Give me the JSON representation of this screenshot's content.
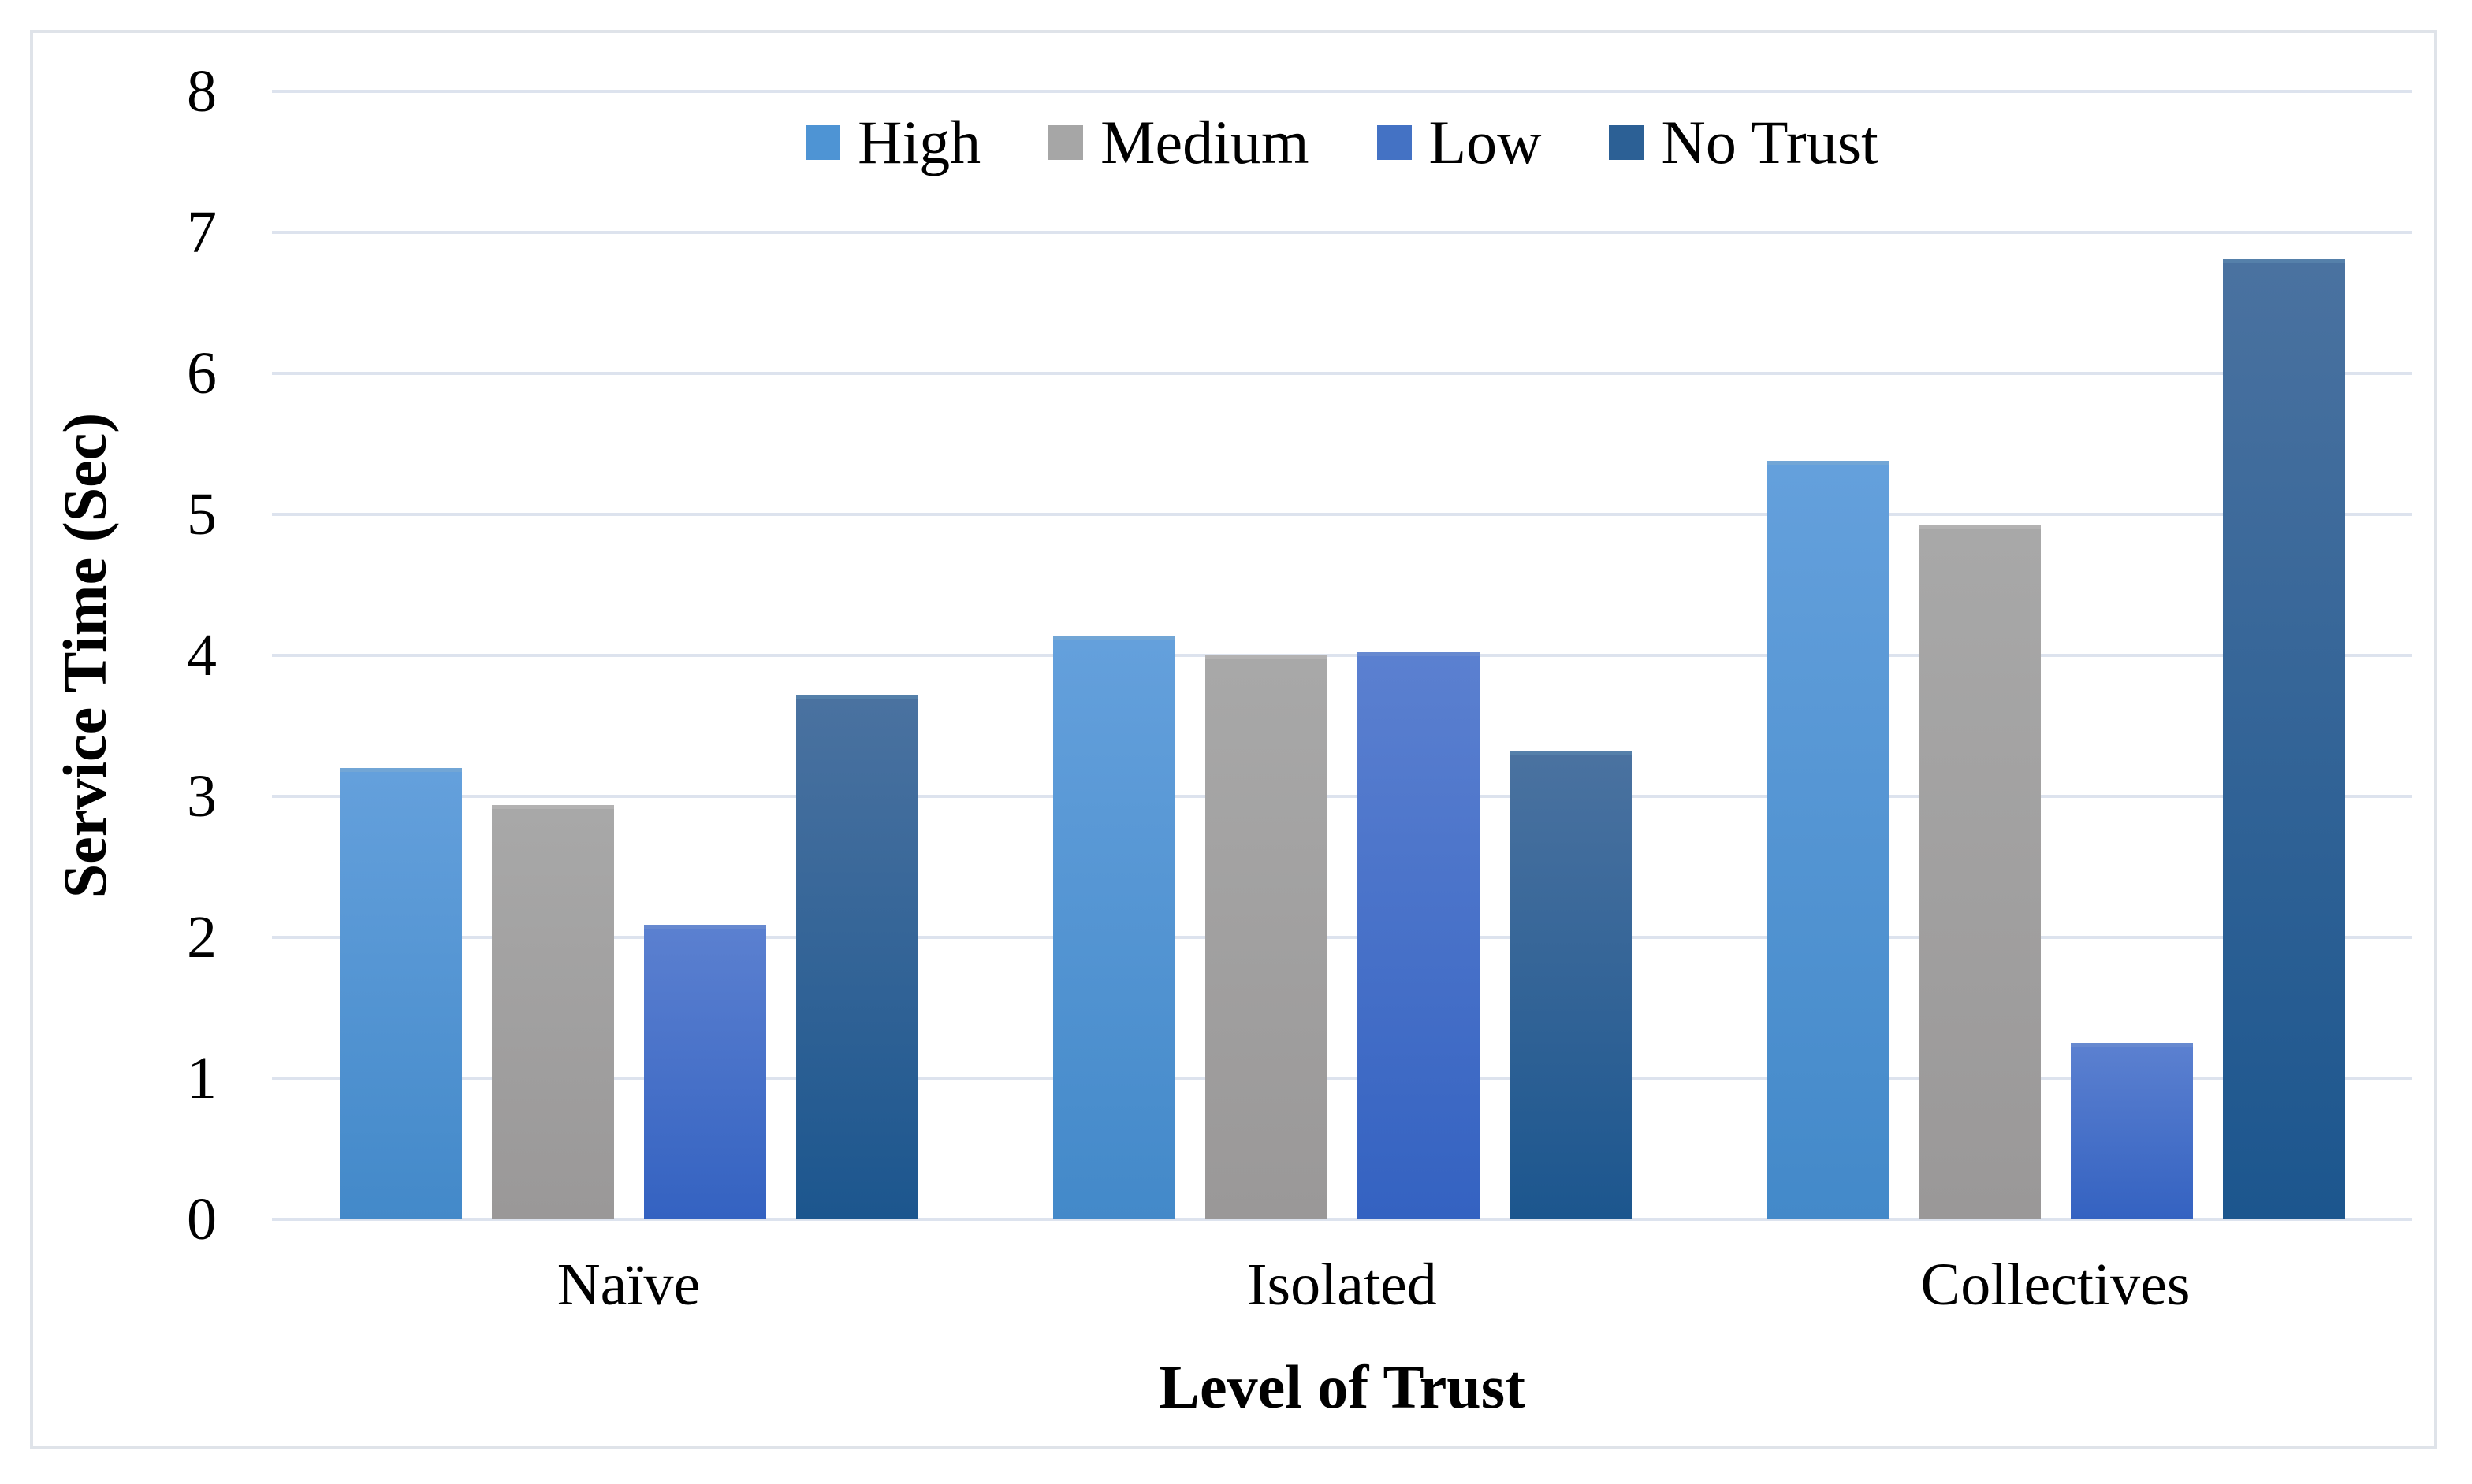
{
  "figure": {
    "background": "#ffffff",
    "frame_border_color": "#dfe3e9"
  },
  "chart_data": {
    "type": "bar",
    "title": "",
    "xlabel": "Level of Trust",
    "ylabel": "Service Time (Sec)",
    "categories": [
      "Naïve",
      "Isolated",
      "Collectives"
    ],
    "series": [
      {
        "name": "High",
        "values": [
          3.2,
          4.14,
          5.38
        ],
        "legend_color": "#4e94d4",
        "color_top": "#64a0dc",
        "color_bottom": "#4389c9"
      },
      {
        "name": "Medium",
        "values": [
          2.94,
          4.0,
          4.92
        ],
        "legend_color": "#a6a6a6",
        "color_top": "#a8a8a8",
        "color_bottom": "#9a9898"
      },
      {
        "name": "Low",
        "values": [
          2.09,
          4.02,
          1.25
        ],
        "legend_color": "#4472c4",
        "color_top": "#5b80d0",
        "color_bottom": "#3462c1"
      },
      {
        "name": "No Trust",
        "values": [
          3.72,
          3.32,
          6.81
        ],
        "legend_color": "#2c6095",
        "color_top": "#4a72a0",
        "color_bottom": "#1c568e"
      }
    ],
    "ylim": [
      0,
      8
    ],
    "yticks": [
      0,
      1,
      2,
      3,
      4,
      5,
      6,
      7,
      8
    ],
    "grid": true,
    "gridline_color": "#dde3ee",
    "legend_position": "top-center"
  }
}
